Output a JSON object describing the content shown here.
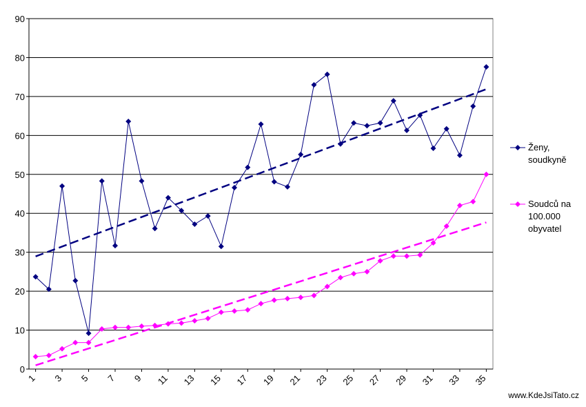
{
  "chart_data": {
    "type": "line",
    "x": [
      1,
      2,
      3,
      4,
      5,
      6,
      7,
      8,
      9,
      10,
      11,
      12,
      13,
      14,
      15,
      16,
      17,
      18,
      19,
      20,
      21,
      22,
      23,
      24,
      25,
      26,
      27,
      28,
      29,
      30,
      31,
      32,
      33,
      34,
      35
    ],
    "xlim": [
      0.5,
      35.5
    ],
    "xticks": [
      1,
      3,
      5,
      7,
      9,
      11,
      13,
      15,
      17,
      19,
      21,
      23,
      25,
      27,
      29,
      31,
      33,
      35
    ],
    "ylim": [
      0,
      90
    ],
    "yticks": [
      0,
      10,
      20,
      30,
      40,
      50,
      60,
      70,
      80,
      90
    ],
    "grid": true,
    "trendline": true,
    "legend": "right",
    "series": [
      {
        "name": "Ženy, soudkyně",
        "color": "#000080",
        "values": [
          23.7,
          20.5,
          47,
          22.7,
          9.2,
          48.3,
          31.7,
          63.6,
          48.3,
          36.1,
          44,
          40.7,
          37.2,
          39.3,
          31.5,
          46.6,
          51.8,
          62.9,
          48.1,
          46.8,
          55.1,
          73,
          75.7,
          57.8,
          63.2,
          62.5,
          63.2,
          68.9,
          61.3,
          65.2,
          56.7,
          61.7,
          54.9,
          67.5,
          77.6
        ]
      },
      {
        "name": "Soudců na 100.000 obyvatel",
        "color": "#ff00ff",
        "values": [
          3.2,
          3.5,
          5.2,
          6.8,
          6.8,
          10.3,
          10.7,
          10.7,
          11,
          11.2,
          11.6,
          11.8,
          12.4,
          13,
          14.6,
          14.9,
          15.2,
          16.8,
          17.7,
          18.1,
          18.4,
          18.9,
          21.2,
          23.5,
          24.5,
          25,
          27.8,
          29,
          29,
          29.3,
          32.4,
          36.7,
          42,
          43,
          50
        ]
      }
    ],
    "source": "www.KdeJsiTato.cz"
  }
}
